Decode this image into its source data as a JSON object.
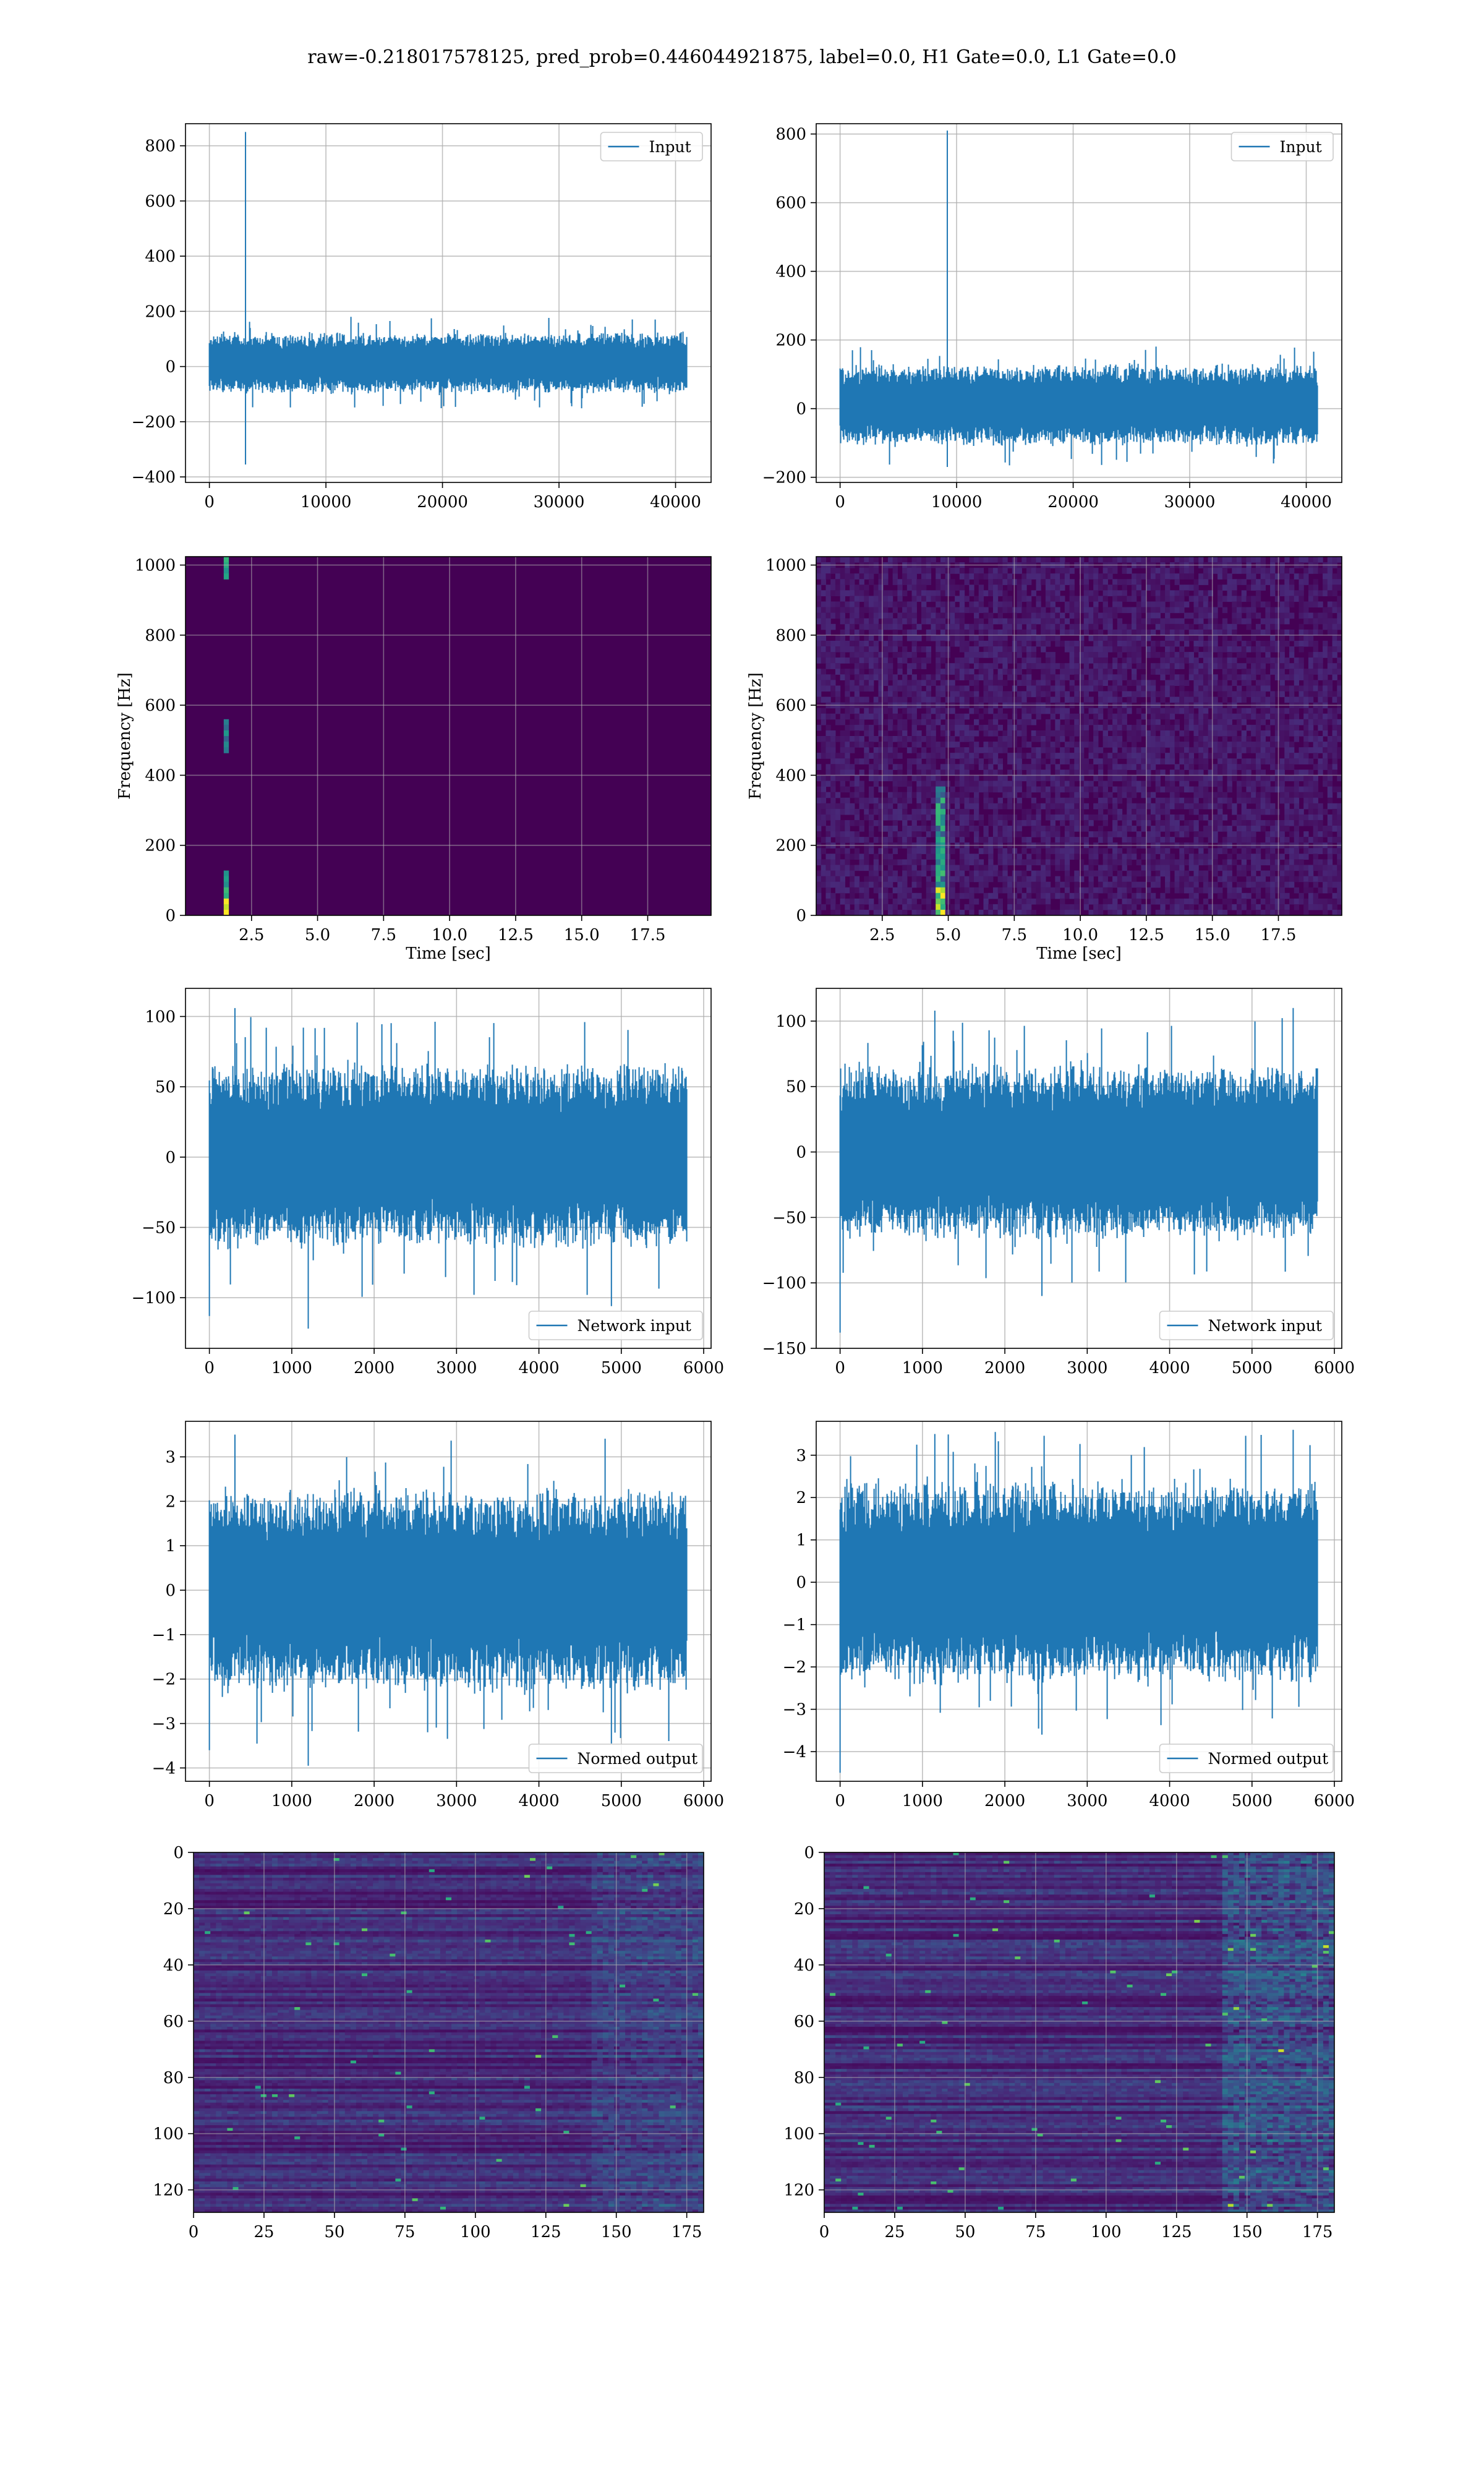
{
  "suptitle": "raw=-0.218017578125, pred_prob=0.446044921875, label=0.0, H1 Gate=0.0, L1 Gate=0.0",
  "colors": {
    "line": "#1f77b4",
    "grid": "#b0b0b0",
    "viridis_bg": "#440154",
    "axes_edge": "#000000"
  },
  "chart_data": [
    {
      "type": "line",
      "id": "input-h1",
      "legend": "Input",
      "legend_loc": "upper right",
      "xlim": [
        -2050,
        43050
      ],
      "ylim": [
        -420,
        880
      ],
      "xticks": [
        0,
        10000,
        20000,
        30000,
        40000
      ],
      "xtick_labels": [
        "0",
        "10000",
        "20000",
        "30000",
        "40000"
      ],
      "yticks": [
        -400,
        -200,
        0,
        200,
        400,
        600,
        800
      ],
      "ytick_labels": [
        "−400",
        "−200",
        "0",
        "200",
        "400",
        "600",
        "800"
      ],
      "grid": true,
      "signal": {
        "n": 41000,
        "noise_band": [
          -90,
          115
        ],
        "spikes": [
          {
            "x": 3100,
            "top": 850,
            "bottom": -355
          }
        ]
      }
    },
    {
      "type": "line",
      "id": "input-l1",
      "legend": "Input",
      "legend_loc": "upper right",
      "xlim": [
        -2050,
        43050
      ],
      "ylim": [
        -215,
        830
      ],
      "xticks": [
        0,
        10000,
        20000,
        30000,
        40000
      ],
      "xtick_labels": [
        "0",
        "10000",
        "20000",
        "30000",
        "40000"
      ],
      "yticks": [
        -200,
        0,
        200,
        400,
        600,
        800
      ],
      "ytick_labels": [
        "−200",
        "0",
        "200",
        "400",
        "600",
        "800"
      ],
      "grid": true,
      "signal": {
        "n": 41000,
        "noise_band": [
          -100,
          120
        ],
        "spikes": [
          {
            "x": 9200,
            "top": 810,
            "bottom": -170
          }
        ]
      }
    },
    {
      "type": "heatmap",
      "id": "spec-h1",
      "xlabel": "Time [sec]",
      "ylabel": "Frequency [Hz]",
      "xlim": [
        0,
        19.9
      ],
      "ylim": [
        0,
        1024
      ],
      "xticks": [
        2.5,
        5,
        7.5,
        10,
        12.5,
        15,
        17.5
      ],
      "xtick_labels": [
        "2.5",
        "5.0",
        "7.5",
        "10.0",
        "12.5",
        "15.0",
        "17.5"
      ],
      "yticks": [
        0,
        200,
        400,
        600,
        800,
        1000
      ],
      "ytick_labels": [
        "0",
        "200",
        "400",
        "600",
        "800",
        "1000"
      ],
      "grid": true,
      "colormap": "viridis",
      "features": [
        {
          "t": 1.5,
          "f_ranges": [
            [
              0,
              120
            ],
            [
              460,
              560
            ],
            [
              960,
              1024
            ]
          ]
        }
      ]
    },
    {
      "type": "heatmap",
      "id": "spec-l1",
      "xlabel": "Time [sec]",
      "ylabel": "Frequency [Hz]",
      "xlim": [
        0,
        19.9
      ],
      "ylim": [
        0,
        1024
      ],
      "xticks": [
        2.5,
        5,
        7.5,
        10,
        12.5,
        15,
        17.5
      ],
      "xtick_labels": [
        "2.5",
        "5.0",
        "7.5",
        "10.0",
        "12.5",
        "15.0",
        "17.5"
      ],
      "yticks": [
        0,
        200,
        400,
        600,
        800,
        1000
      ],
      "ytick_labels": [
        "0",
        "200",
        "400",
        "600",
        "800",
        "1000"
      ],
      "grid": true,
      "colormap": "viridis",
      "features": [
        {
          "t": 4.7,
          "f_ranges": [
            [
              0,
              360
            ]
          ]
        }
      ]
    },
    {
      "type": "line",
      "id": "netin-h1",
      "legend": "Network input",
      "legend_loc": "lower right",
      "xlim": [
        -290,
        6090
      ],
      "ylim": [
        -136,
        120
      ],
      "xticks": [
        0,
        1000,
        2000,
        3000,
        4000,
        5000,
        6000
      ],
      "xtick_labels": [
        "0",
        "1000",
        "2000",
        "3000",
        "4000",
        "5000",
        "6000"
      ],
      "yticks": [
        -100,
        -50,
        0,
        50,
        100
      ],
      "ytick_labels": [
        "−100",
        "−50",
        "0",
        "50",
        "100"
      ],
      "grid": true,
      "signal": {
        "n": 5800,
        "noise_band": [
          -60,
          62
        ],
        "extremes": [
          {
            "x": 0,
            "v": -113
          },
          {
            "x": 1200,
            "v": -122
          },
          {
            "x": 310,
            "v": 106
          },
          {
            "x": 4880,
            "v": -106
          }
        ]
      }
    },
    {
      "type": "line",
      "id": "netin-l1",
      "legend": "Network input",
      "legend_loc": "lower right",
      "xlim": [
        -290,
        6090
      ],
      "ylim": [
        -150,
        125
      ],
      "xticks": [
        0,
        1000,
        2000,
        3000,
        4000,
        5000,
        6000
      ],
      "xtick_labels": [
        "0",
        "1000",
        "2000",
        "3000",
        "4000",
        "5000",
        "6000"
      ],
      "yticks": [
        -150,
        -100,
        -50,
        0,
        50,
        100
      ],
      "ytick_labels": [
        "−150",
        "−100",
        "−50",
        "0",
        "50",
        "100"
      ],
      "grid": true,
      "signal": {
        "n": 5800,
        "noise_band": [
          -62,
          62
        ],
        "extremes": [
          {
            "x": 0,
            "v": -138
          },
          {
            "x": 1150,
            "v": 108
          },
          {
            "x": 2450,
            "v": -110
          },
          {
            "x": 5500,
            "v": 110
          }
        ]
      }
    },
    {
      "type": "line",
      "id": "normed-h1",
      "legend": "Normed output",
      "legend_loc": "lower right",
      "xlim": [
        -290,
        6090
      ],
      "ylim": [
        -4.3,
        3.8
      ],
      "xticks": [
        0,
        1000,
        2000,
        3000,
        4000,
        5000,
        6000
      ],
      "xtick_labels": [
        "0",
        "1000",
        "2000",
        "3000",
        "4000",
        "5000",
        "6000"
      ],
      "yticks": [
        -4,
        -3,
        -2,
        -1,
        0,
        1,
        2,
        3
      ],
      "ytick_labels": [
        "−4",
        "−3",
        "−2",
        "−1",
        "0",
        "1",
        "2",
        "3"
      ],
      "grid": true,
      "signal": {
        "n": 5800,
        "noise_band": [
          -2.1,
          2.1
        ],
        "extremes": [
          {
            "x": 0,
            "v": -3.6
          },
          {
            "x": 1200,
            "v": -3.95
          },
          {
            "x": 310,
            "v": 3.5
          },
          {
            "x": 4880,
            "v": -3.45
          }
        ]
      }
    },
    {
      "type": "line",
      "id": "normed-l1",
      "legend": "Normed output",
      "legend_loc": "lower right",
      "xlim": [
        -290,
        6090
      ],
      "ylim": [
        -4.7,
        3.8
      ],
      "xticks": [
        0,
        1000,
        2000,
        3000,
        4000,
        5000,
        6000
      ],
      "xtick_labels": [
        "0",
        "1000",
        "2000",
        "3000",
        "4000",
        "5000",
        "6000"
      ],
      "yticks": [
        -4,
        -3,
        -2,
        -1,
        0,
        1,
        2,
        3
      ],
      "ytick_labels": [
        "−4",
        "−3",
        "−2",
        "−1",
        "0",
        "1",
        "2",
        "3"
      ],
      "grid": true,
      "signal": {
        "n": 5800,
        "noise_band": [
          -2.2,
          2.2
        ],
        "extremes": [
          {
            "x": 0,
            "v": -4.5
          },
          {
            "x": 1150,
            "v": 3.5
          },
          {
            "x": 2450,
            "v": -3.6
          },
          {
            "x": 5500,
            "v": 3.6
          }
        ]
      }
    },
    {
      "type": "heatmap",
      "id": "feat-h1",
      "xlim": [
        0,
        181
      ],
      "ylim": [
        128,
        0
      ],
      "xticks": [
        0,
        25,
        50,
        75,
        100,
        125,
        150,
        175
      ],
      "xtick_labels": [
        "0",
        "25",
        "50",
        "75",
        "100",
        "125",
        "150",
        "175"
      ],
      "yticks": [
        0,
        20,
        40,
        60,
        80,
        100,
        120
      ],
      "ytick_labels": [
        "0",
        "20",
        "40",
        "60",
        "80",
        "100",
        "120"
      ],
      "grid": true,
      "colormap": "viridis"
    },
    {
      "type": "heatmap",
      "id": "feat-l1",
      "xlim": [
        0,
        181
      ],
      "ylim": [
        128,
        0
      ],
      "xticks": [
        0,
        25,
        50,
        75,
        100,
        125,
        150,
        175
      ],
      "xtick_labels": [
        "0",
        "25",
        "50",
        "75",
        "100",
        "125",
        "150",
        "175"
      ],
      "yticks": [
        0,
        20,
        40,
        60,
        80,
        100,
        120
      ],
      "ytick_labels": [
        "0",
        "20",
        "40",
        "60",
        "80",
        "100",
        "120"
      ],
      "grid": true,
      "colormap": "viridis"
    }
  ]
}
